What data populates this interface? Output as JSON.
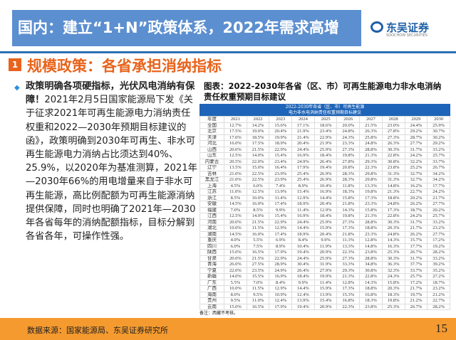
{
  "header": {
    "title": "国内：建立“1+N”政策体系，2022年需求高增",
    "logo_cn": "东吴证券",
    "logo_en": "SOOCHOW SECURITIES"
  },
  "section": {
    "number": "1",
    "title": "规模政策：各省承担消纳指标"
  },
  "body": {
    "bold": "政策明确各项硬指标，光伏风电消纳有保障！",
    "text": "2021年2月5日国家能源局下发《关于征求2021年可再生能源电力消纳责任权重和2022—2030年预期目标建议的函》，政策明确到2030年可再生、非水可再生能源电力消纳占比须达到40%、25.9%，以2020年为基准测算，2021年—2030年66%的用电增量来自于非水可再生能源，高比例配额为可再生能源消纳提供保障，同时也明确了2021年—2030年各省每年的消纳配额指标，目标分解到各省各年，可操作性强。"
  },
  "figure": {
    "caption": "图表：2022-2030年各省（区、市）可再生能源电力非水电消纳责任权重预期目标建议",
    "table_title_1": "2022-2030年各省（区、市）可再生能源",
    "table_title_2": "电力非水电消纳责任权重预期目标建议",
    "note": "备注：西藏不考核。"
  },
  "table": {
    "columns": [
      "年度",
      "2021",
      "2022",
      "2023",
      "2024",
      "2025",
      "2026",
      "2027",
      "2028",
      "2029",
      "2030"
    ],
    "rows": [
      [
        "全国",
        "12.7%",
        "14.2%",
        "15.6%",
        "17.1%",
        "18.6%",
        "20.0%",
        "21.5%",
        "23.0%",
        "24.4%",
        "25.9%"
      ],
      [
        "北京",
        "17.5%",
        "19.0%",
        "20.4%",
        "21.9%",
        "23.4%",
        "24.8%",
        "26.3%",
        "27.8%",
        "29.2%",
        "30.7%"
      ],
      [
        "天津",
        "17.0%",
        "18.5%",
        "19.9%",
        "21.4%",
        "22.9%",
        "24.3%",
        "25.8%",
        "27.3%",
        "28.7%",
        "30.2%"
      ],
      [
        "河北",
        "16.0%",
        "17.5%",
        "18.9%",
        "20.4%",
        "21.9%",
        "23.3%",
        "24.8%",
        "26.3%",
        "27.7%",
        "29.2%"
      ],
      [
        "山西",
        "20.0%",
        "21.5%",
        "22.9%",
        "24.4%",
        "25.9%",
        "27.3%",
        "28.8%",
        "30.3%",
        "31.7%",
        "33.2%"
      ],
      [
        "山东",
        "12.5%",
        "14.0%",
        "15.4%",
        "16.9%",
        "18.4%",
        "19.8%",
        "21.3%",
        "22.8%",
        "24.2%",
        "25.7%"
      ],
      [
        "内蒙古",
        "20.5%",
        "22.0%",
        "23.4%",
        "24.9%",
        "26.4%",
        "27.8%",
        "29.3%",
        "30.8%",
        "32.2%",
        "33.7%"
      ],
      [
        "辽宁",
        "13.5%",
        "15.0%",
        "16.4%",
        "17.9%",
        "19.4%",
        "20.8%",
        "22.3%",
        "23.8%",
        "25.2%",
        "26.7%"
      ],
      [
        "吉林",
        "21.0%",
        "22.5%",
        "23.9%",
        "25.4%",
        "26.9%",
        "28.3%",
        "29.8%",
        "31.3%",
        "32.7%",
        "34.2%"
      ],
      [
        "黑龙江",
        "21.0%",
        "22.5%",
        "23.9%",
        "25.4%",
        "26.9%",
        "28.3%",
        "29.8%",
        "31.3%",
        "32.7%",
        "34.2%"
      ],
      [
        "上海",
        "4.5%",
        "6.0%",
        "7.4%",
        "8.9%",
        "10.4%",
        "11.8%",
        "13.3%",
        "14.8%",
        "16.2%",
        "17.7%"
      ],
      [
        "江苏",
        "11.0%",
        "12.5%",
        "13.9%",
        "15.4%",
        "16.9%",
        "18.3%",
        "19.8%",
        "21.3%",
        "22.7%",
        "24.2%"
      ],
      [
        "浙江",
        "8.5%",
        "10.0%",
        "11.4%",
        "12.9%",
        "14.4%",
        "15.8%",
        "17.3%",
        "18.8%",
        "20.2%",
        "21.7%"
      ],
      [
        "安徽",
        "14.5%",
        "16.0%",
        "17.4%",
        "18.9%",
        "20.4%",
        "21.8%",
        "23.3%",
        "24.8%",
        "26.2%",
        "27.7%"
      ],
      [
        "福建",
        "7.0%",
        "8.5%",
        "9.9%",
        "11.4%",
        "12.9%",
        "14.3%",
        "15.8%",
        "17.3%",
        "18.7%",
        "20.2%"
      ],
      [
        "江西",
        "12.5%",
        "14.0%",
        "15.4%",
        "16.9%",
        "18.4%",
        "19.8%",
        "21.3%",
        "22.8%",
        "24.2%",
        "25.7%"
      ],
      [
        "河南",
        "20.0%",
        "21.5%",
        "22.9%",
        "24.4%",
        "25.9%",
        "27.3%",
        "28.8%",
        "30.3%",
        "31.7%",
        "33.2%"
      ],
      [
        "湖北",
        "10.0%",
        "11.5%",
        "12.9%",
        "14.4%",
        "15.9%",
        "17.3%",
        "18.8%",
        "20.3%",
        "21.7%",
        "23.2%"
      ],
      [
        "湖南",
        "14.5%",
        "16.0%",
        "17.4%",
        "18.9%",
        "20.4%",
        "21.8%",
        "23.3%",
        "24.8%",
        "26.2%",
        "27.7%"
      ],
      [
        "重庆",
        "4.0%",
        "5.5%",
        "6.9%",
        "8.4%",
        "9.9%",
        "11.3%",
        "12.8%",
        "14.3%",
        "15.7%",
        "17.2%"
      ],
      [
        "四川",
        "6.0%",
        "7.5%",
        "8.9%",
        "10.4%",
        "11.9%",
        "13.3%",
        "14.8%",
        "16.3%",
        "17.7%",
        "19.2%"
      ],
      [
        "陕西",
        "15.0%",
        "16.5%",
        "17.9%",
        "19.4%",
        "20.9%",
        "22.3%",
        "23.8%",
        "25.3%",
        "26.7%",
        "28.2%"
      ],
      [
        "甘肃",
        "20.0%",
        "21.5%",
        "22.9%",
        "24.4%",
        "25.9%",
        "27.3%",
        "28.8%",
        "30.3%",
        "31.7%",
        "33.2%"
      ],
      [
        "青海",
        "26.0%",
        "27.5%",
        "28.9%",
        "30.4%",
        "31.9%",
        "33.3%",
        "34.8%",
        "36.3%",
        "37.7%",
        "39.2%"
      ],
      [
        "宁夏",
        "22.0%",
        "23.5%",
        "24.9%",
        "26.4%",
        "27.9%",
        "29.3%",
        "30.8%",
        "32.3%",
        "33.7%",
        "35.2%"
      ],
      [
        "新疆",
        "14.0%",
        "15.5%",
        "16.9%",
        "18.4%",
        "19.9%",
        "21.3%",
        "22.8%",
        "24.3%",
        "25.7%",
        "27.2%"
      ],
      [
        "广东",
        "5.5%",
        "7.0%",
        "8.4%",
        "9.9%",
        "11.4%",
        "12.8%",
        "14.3%",
        "15.8%",
        "17.2%",
        "18.7%"
      ],
      [
        "广西",
        "10.0%",
        "11.5%",
        "12.9%",
        "14.4%",
        "15.9%",
        "17.3%",
        "18.8%",
        "20.3%",
        "21.7%",
        "23.2%"
      ],
      [
        "海南",
        "8.0%",
        "9.5%",
        "10.9%",
        "12.4%",
        "13.9%",
        "15.3%",
        "16.8%",
        "18.3%",
        "19.7%",
        "21.2%"
      ],
      [
        "贵州",
        "9.5%",
        "11.0%",
        "12.4%",
        "13.9%",
        "15.4%",
        "16.8%",
        "18.3%",
        "19.8%",
        "21.2%",
        "22.7%"
      ],
      [
        "云南",
        "15.0%",
        "16.5%",
        "17.9%",
        "19.4%",
        "20.9%",
        "22.3%",
        "23.8%",
        "25.3%",
        "26.7%",
        "28.2%"
      ]
    ]
  },
  "footer": {
    "source": "数据来源：国家能源局、东吴证券研究所",
    "page": "15"
  },
  "colors": {
    "title_bar": "#5b8fd0",
    "accent": "#e8641c",
    "table_header": "#1e64b8",
    "footer": "#f59a2f"
  }
}
